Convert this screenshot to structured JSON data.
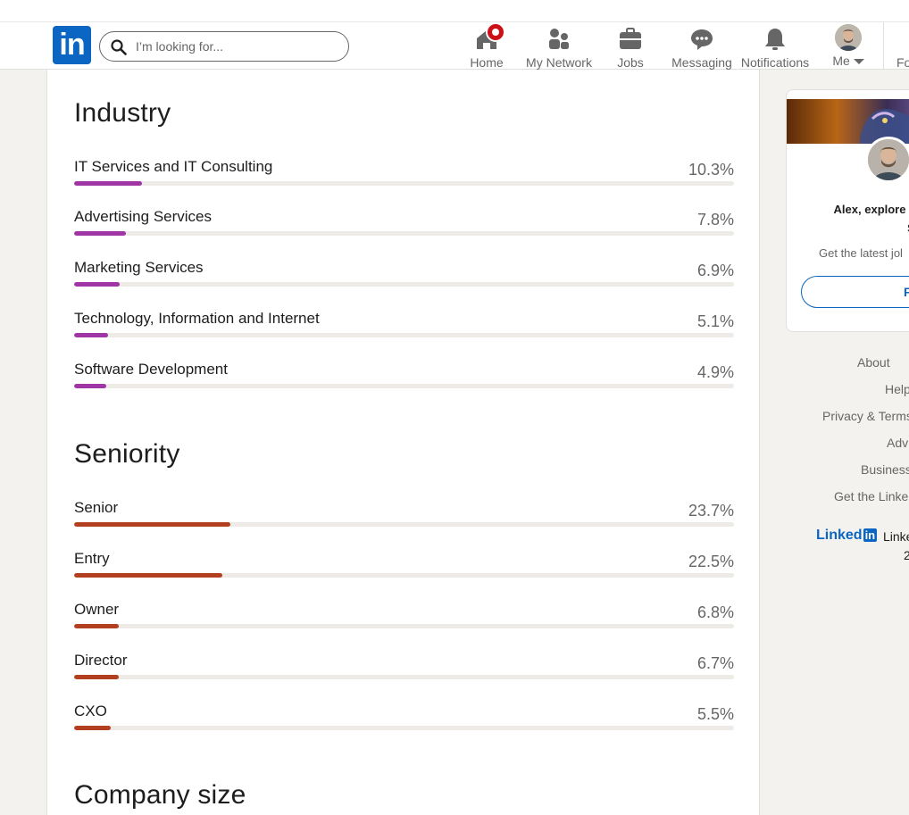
{
  "nav": {
    "logo_text": "in",
    "search_placeholder": "I’m looking for...",
    "items": [
      {
        "label": "Home",
        "icon": "home-icon"
      },
      {
        "label": "My Network",
        "icon": "network-icon"
      },
      {
        "label": "Jobs",
        "icon": "briefcase-icon"
      },
      {
        "label": "Messaging",
        "icon": "messaging-icon"
      },
      {
        "label": "Notifications",
        "icon": "bell-icon"
      },
      {
        "label": "Me",
        "icon": "avatar"
      },
      {
        "label": "Fo",
        "icon": ""
      }
    ]
  },
  "industry": {
    "title": "Industry",
    "color": "#a035a6",
    "rows": [
      {
        "name": "IT Services and IT Consulting",
        "pct": "10.3%",
        "value": 10.3
      },
      {
        "name": "Advertising Services",
        "pct": "7.8%",
        "value": 7.8
      },
      {
        "name": "Marketing Services",
        "pct": "6.9%",
        "value": 6.9
      },
      {
        "name": "Technology, Information and Internet",
        "pct": "5.1%",
        "value": 5.1
      },
      {
        "name": "Software Development",
        "pct": "4.9%",
        "value": 4.9
      }
    ]
  },
  "seniority": {
    "title": "Seniority",
    "color": "#b24020",
    "rows": [
      {
        "name": "Senior",
        "pct": "23.7%",
        "value": 23.7
      },
      {
        "name": "Entry",
        "pct": "22.5%",
        "value": 22.5
      },
      {
        "name": "Owner",
        "pct": "6.8%",
        "value": 6.8
      },
      {
        "name": "Director",
        "pct": "6.7%",
        "value": 6.7
      },
      {
        "name": "CXO",
        "pct": "5.5%",
        "value": 5.5
      }
    ]
  },
  "company_size": {
    "title": "Company size"
  },
  "ad": {
    "title_line1": "Alex, explore relev",
    "title_line2": "Snail G",
    "subtitle": "Get the latest jol",
    "button_label": "F"
  },
  "footer": {
    "links": [
      "About",
      "Help",
      "Privacy & Terms",
      "Adv",
      "Business",
      "Get the Linke"
    ],
    "brand": "Linked",
    "brand_box": "in",
    "corp": "Linke",
    "year": "2"
  }
}
